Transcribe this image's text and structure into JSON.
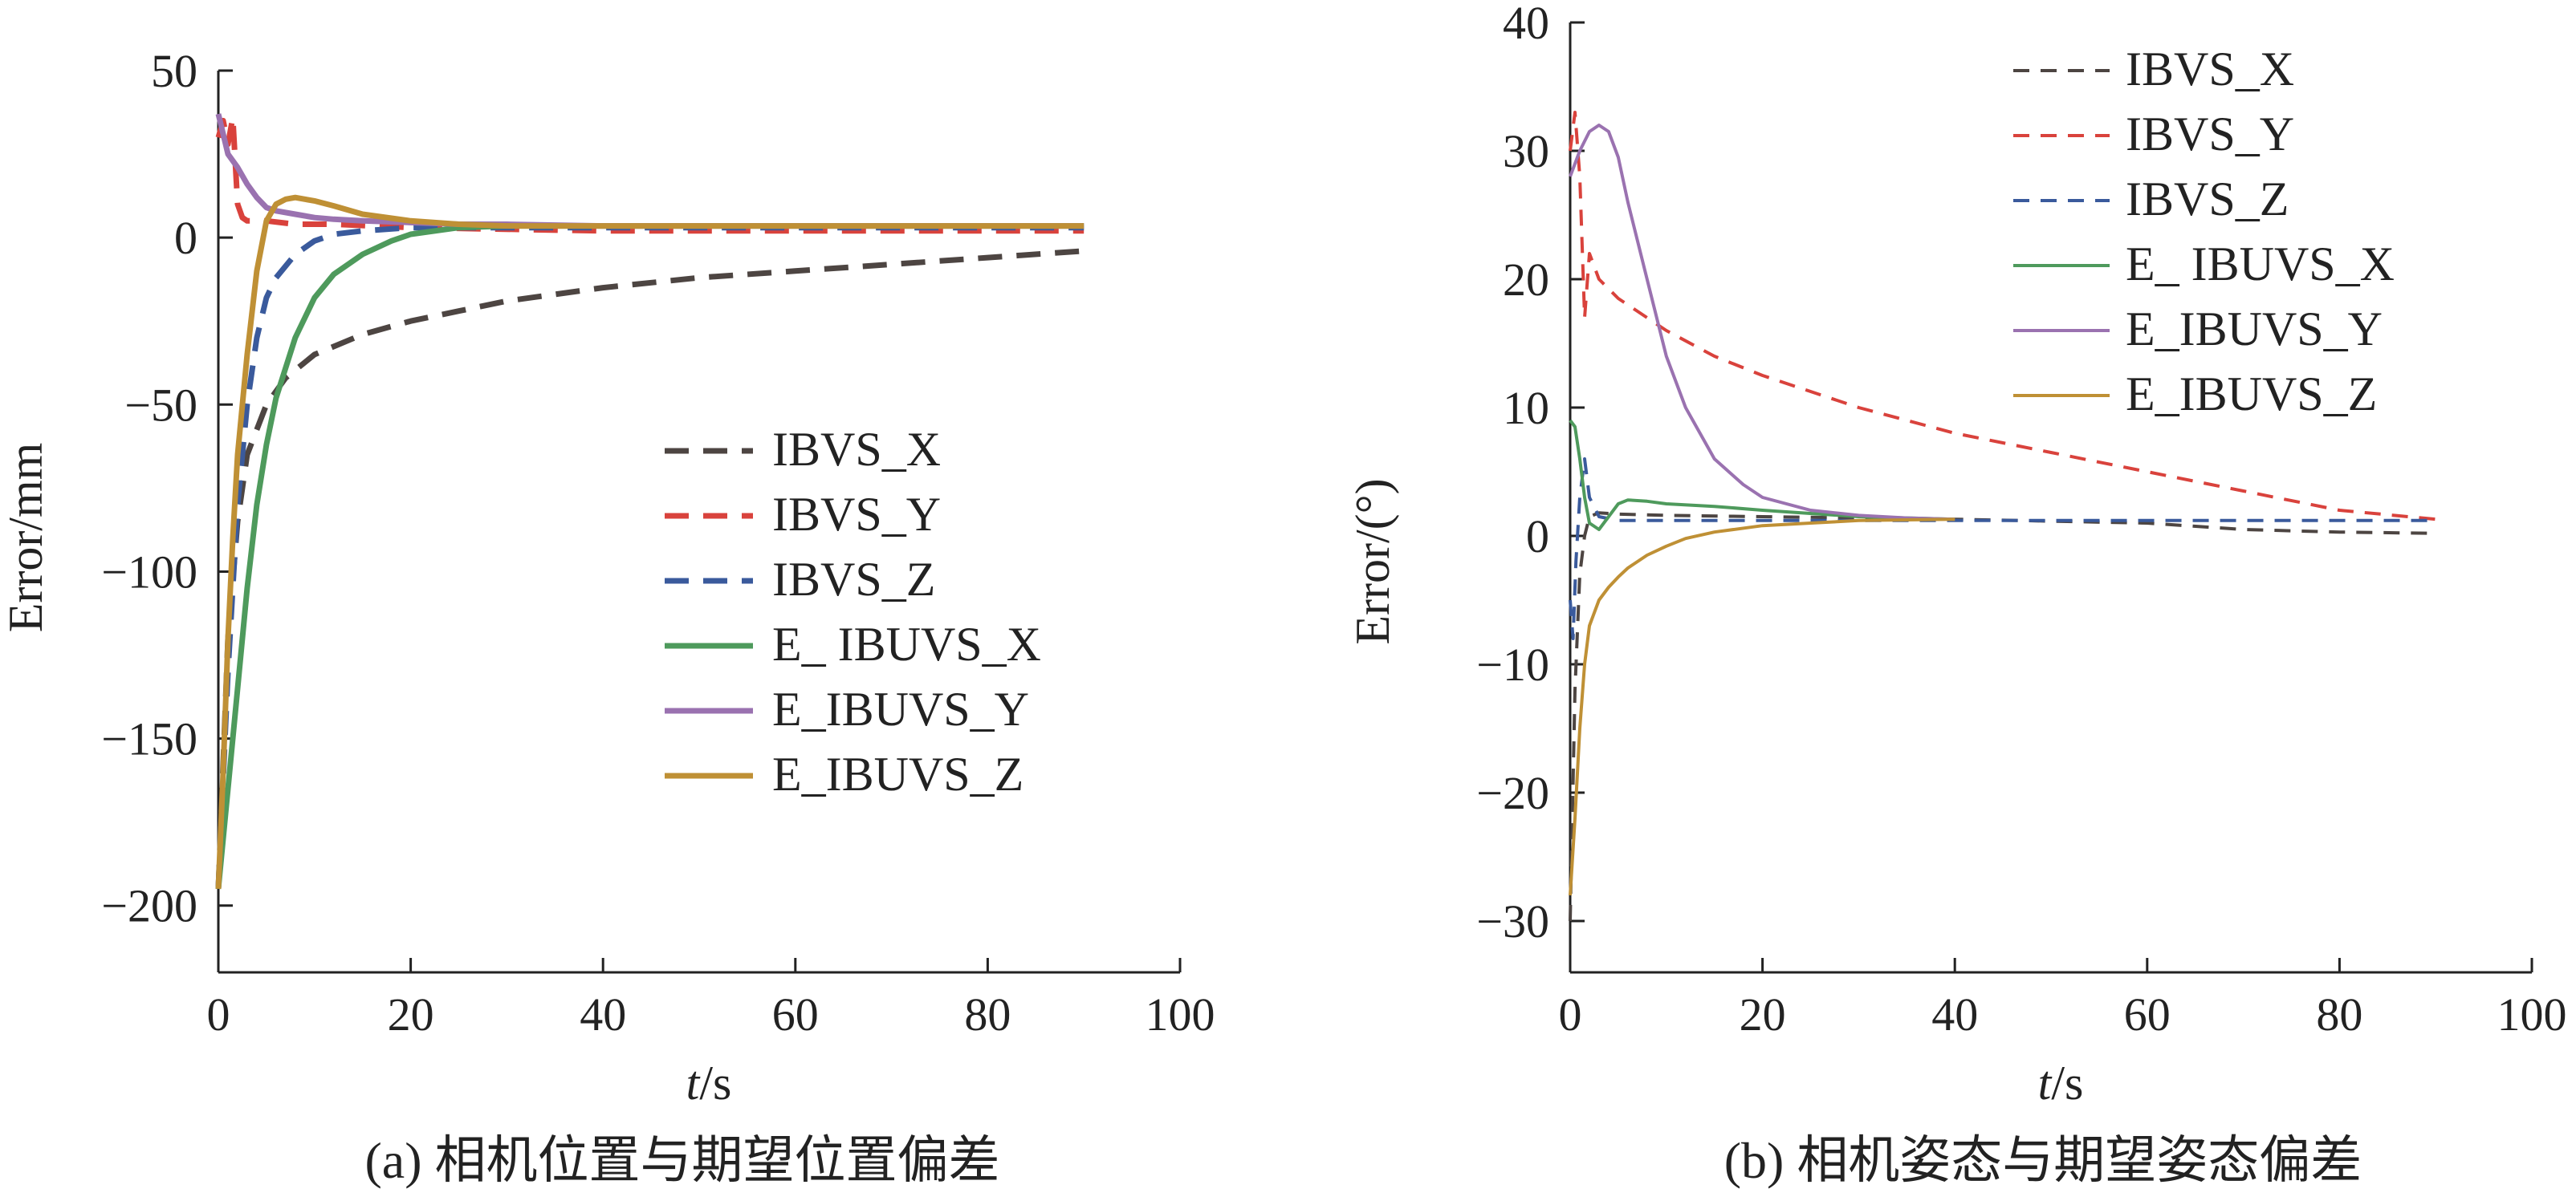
{
  "chart_data": [
    {
      "type": "line",
      "panel": "a",
      "caption": "(a) 相机位置与期望位置偏差",
      "xlabel_italic": "t",
      "xlabel_unit": "/s",
      "ylabel": "Error/mm",
      "xlim": [
        0,
        100
      ],
      "ylim": [
        -220,
        50
      ],
      "xticks": [
        0,
        20,
        40,
        60,
        80,
        100
      ],
      "yticks": [
        50,
        0,
        -50,
        -100,
        -150,
        -200
      ],
      "ytick_labels": [
        "50",
        "0",
        "−50",
        "−100",
        "−150",
        "−200"
      ],
      "legend_position": "center-right",
      "series": [
        {
          "name": "IBVS_X",
          "color": "#4d4542",
          "style": "dashed",
          "x": [
            0,
            1,
            2,
            3,
            5,
            7,
            10,
            15,
            20,
            25,
            30,
            40,
            50,
            60,
            70,
            80,
            90
          ],
          "y": [
            -195,
            -120,
            -85,
            -65,
            -50,
            -42,
            -35,
            -29,
            -25,
            -22,
            -19,
            -15,
            -12,
            -10,
            -8,
            -6,
            -4
          ]
        },
        {
          "name": "IBVS_Y",
          "color": "#d9423c",
          "style": "dashed",
          "x": [
            0,
            0.5,
            1,
            1.5,
            2,
            2.5,
            3,
            5,
            8,
            12,
            20,
            40,
            60,
            90
          ],
          "y": [
            30,
            35,
            28,
            36,
            10,
            6,
            5,
            5,
            4,
            4,
            3,
            2,
            2,
            2
          ]
        },
        {
          "name": "IBVS_Z",
          "color": "#3a5a9c",
          "style": "dashed",
          "x": [
            0,
            1,
            2,
            3,
            4,
            5,
            6,
            8,
            10,
            12,
            15,
            20,
            30,
            40,
            60,
            90
          ],
          "y": [
            -195,
            -130,
            -80,
            -50,
            -30,
            -18,
            -12,
            -5,
            -1,
            1,
            2,
            3,
            3,
            3,
            3,
            3
          ]
        },
        {
          "name": "E_ IBUVS_X",
          "color": "#4e9a5c",
          "style": "solid",
          "x": [
            0,
            1,
            2,
            3,
            4,
            5,
            6,
            8,
            10,
            12,
            15,
            18,
            20,
            25,
            30,
            40,
            60,
            90
          ],
          "y": [
            -195,
            -165,
            -135,
            -105,
            -80,
            -62,
            -48,
            -30,
            -18,
            -11,
            -5,
            -1,
            1,
            3,
            3.5,
            3.5,
            3.5,
            3.5
          ]
        },
        {
          "name": "E_IBUVS_Y",
          "color": "#9a72b0",
          "style": "solid",
          "x": [
            0,
            1,
            2,
            3,
            4,
            5,
            6,
            8,
            10,
            12,
            15,
            20,
            25,
            30,
            40,
            60,
            90
          ],
          "y": [
            37,
            25,
            21,
            16,
            12,
            9,
            8,
            7,
            6,
            5.5,
            5,
            4.5,
            4,
            4,
            3.5,
            3.5,
            3.5
          ]
        },
        {
          "name": "E_IBUVS_Z",
          "color": "#bf9035",
          "style": "solid",
          "x": [
            0,
            0.5,
            1,
            1.5,
            2,
            3,
            4,
            5,
            6,
            7,
            8,
            9,
            10,
            12,
            15,
            20,
            25,
            30,
            40,
            60,
            90
          ],
          "y": [
            -195,
            -160,
            -120,
            -90,
            -65,
            -35,
            -10,
            5,
            10,
            11.5,
            12,
            11.5,
            11,
            9.5,
            7,
            5,
            4,
            3.5,
            3.5,
            3.5,
            3.5
          ]
        }
      ]
    },
    {
      "type": "line",
      "panel": "b",
      "caption": "(b) 相机姿态与期望姿态偏差",
      "xlabel_italic": "t",
      "xlabel_unit": "/s",
      "ylabel": "Error/(°)",
      "xlim": [
        0,
        100
      ],
      "ylim": [
        -34,
        40
      ],
      "xticks": [
        0,
        20,
        40,
        60,
        80,
        100
      ],
      "yticks": [
        40,
        30,
        20,
        10,
        0,
        -10,
        -20,
        -30
      ],
      "ytick_labels": [
        "40",
        "30",
        "20",
        "10",
        "0",
        "−10",
        "−20",
        "−30"
      ],
      "legend_position": "top-right",
      "series": [
        {
          "name": "IBVS_X",
          "color": "#4d4542",
          "style": "dashed",
          "x": [
            0,
            0.5,
            1,
            1.5,
            2,
            3,
            5,
            10,
            20,
            40,
            60,
            70,
            80,
            90
          ],
          "y": [
            -30,
            -12,
            -3,
            0,
            1.5,
            1.8,
            1.7,
            1.6,
            1.5,
            1.3,
            1,
            0.5,
            0.3,
            0.2
          ]
        },
        {
          "name": "IBVS_Y",
          "color": "#d9423c",
          "style": "dashed",
          "x": [
            0,
            0.5,
            1,
            1.5,
            2,
            3,
            5,
            10,
            15,
            20,
            30,
            40,
            50,
            60,
            70,
            80,
            90
          ],
          "y": [
            30,
            33,
            28,
            17,
            22,
            20,
            18.5,
            16,
            14,
            12.5,
            10,
            8,
            6.5,
            5,
            3.5,
            2,
            1.3
          ]
        },
        {
          "name": "IBVS_Z",
          "color": "#3a5a9c",
          "style": "dashed",
          "x": [
            0,
            0.3,
            0.6,
            1,
            1.5,
            2,
            3,
            5,
            10,
            20,
            40,
            60,
            90
          ],
          "y": [
            -5,
            -8,
            -2,
            3,
            6,
            3,
            1.5,
            1.2,
            1.2,
            1.2,
            1.2,
            1.2,
            1.2
          ]
        },
        {
          "name": "E_ IBUVS_X",
          "color": "#4e9a5c",
          "style": "solid",
          "x": [
            0,
            0.5,
            1,
            1.5,
            2,
            3,
            4,
            5,
            6,
            8,
            10,
            15,
            20,
            30,
            40
          ],
          "y": [
            9,
            8.5,
            6,
            3,
            1,
            0.5,
            1.5,
            2.5,
            2.8,
            2.7,
            2.5,
            2.3,
            2,
            1.5,
            1.3
          ]
        },
        {
          "name": "E_IBUVS_Y",
          "color": "#9a72b0",
          "style": "solid",
          "x": [
            0,
            0.5,
            1,
            2,
            3,
            4,
            5,
            6,
            8,
            10,
            12,
            15,
            18,
            20,
            25,
            30,
            35,
            40
          ],
          "y": [
            28,
            29,
            30,
            31.5,
            32,
            31.5,
            29.5,
            26,
            20,
            14,
            10,
            6,
            4,
            3,
            2,
            1.6,
            1.4,
            1.3
          ]
        },
        {
          "name": "E_IBUVS_Z",
          "color": "#bf9035",
          "style": "solid",
          "x": [
            0,
            0.5,
            1,
            1.5,
            2,
            3,
            4,
            5,
            6,
            8,
            10,
            12,
            15,
            20,
            25,
            30,
            40
          ],
          "y": [
            -28,
            -22,
            -15,
            -10,
            -7,
            -5,
            -4,
            -3.2,
            -2.5,
            -1.5,
            -0.8,
            -0.2,
            0.3,
            0.8,
            1,
            1.2,
            1.3
          ]
        }
      ]
    }
  ]
}
